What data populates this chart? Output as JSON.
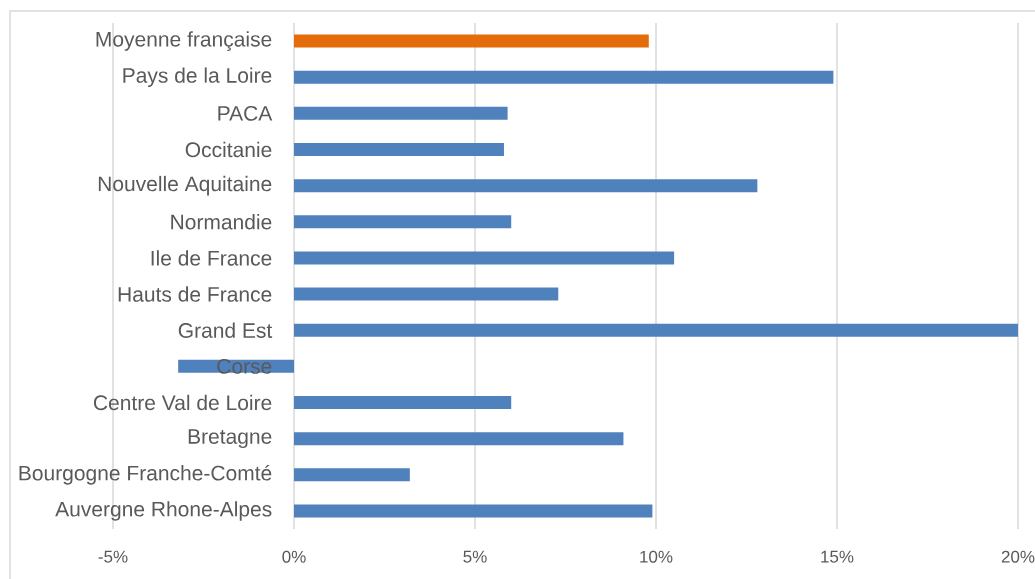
{
  "chart_data": {
    "type": "bar",
    "orientation": "horizontal",
    "categories": [
      "Moyenne française",
      "Pays de la Loire",
      "PACA",
      "Occitanie",
      "Nouvelle Aquitaine",
      "Normandie",
      "Ile de France",
      "Hauts de France",
      "Grand Est",
      "Corse",
      "Centre Val de Loire",
      "Bretagne",
      "Bourgogne Franche-Comté",
      "Auvergne Rhone-Alpes"
    ],
    "values": [
      9.8,
      14.9,
      5.9,
      5.8,
      12.8,
      6.0,
      10.5,
      7.3,
      20.0,
      -3.2,
      6.0,
      9.1,
      3.2,
      9.9
    ],
    "colors": [
      "#e46c0a",
      "#4f81bd",
      "#4f81bd",
      "#4f81bd",
      "#4f81bd",
      "#4f81bd",
      "#4f81bd",
      "#4f81bd",
      "#4f81bd",
      "#4f81bd",
      "#4f81bd",
      "#4f81bd",
      "#4f81bd",
      "#4f81bd"
    ],
    "xlim": [
      -5,
      20
    ],
    "xticks": [
      {
        "value": -5,
        "label": "-5%"
      },
      {
        "value": 0,
        "label": "0%"
      },
      {
        "value": 5,
        "label": "5%"
      },
      {
        "value": 10,
        "label": "10%"
      },
      {
        "value": 15,
        "label": "15%"
      },
      {
        "value": 20,
        "label": "20%"
      }
    ],
    "grid": "x"
  }
}
